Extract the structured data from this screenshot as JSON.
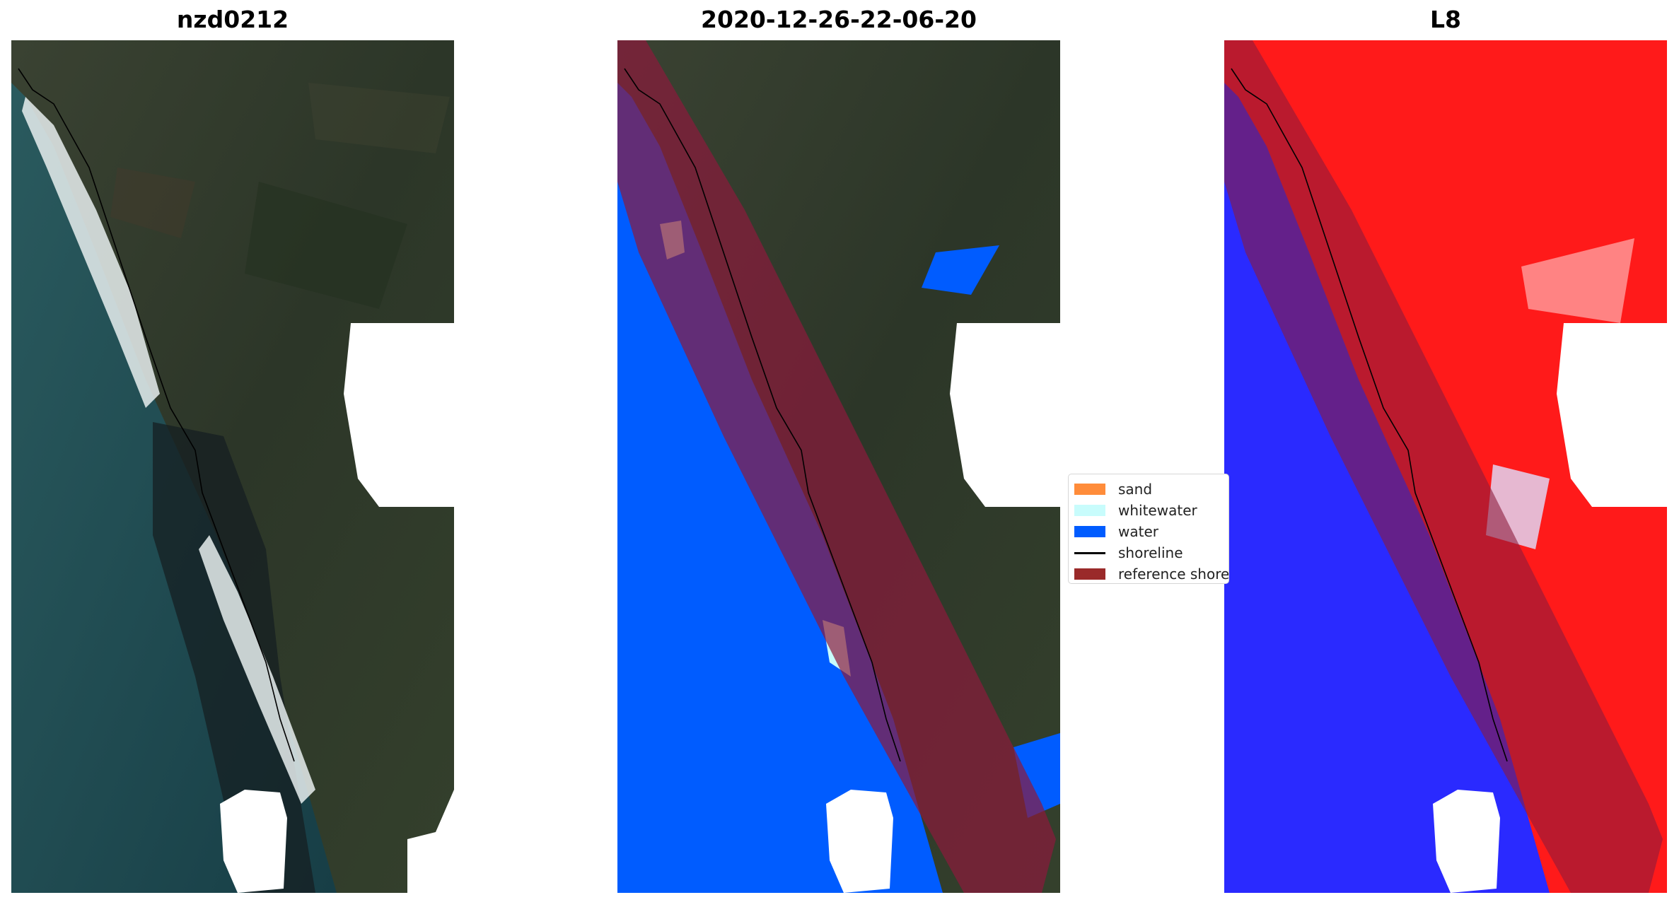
{
  "panels": [
    {
      "title": "nzd0212"
    },
    {
      "title": "2020-12-26-22-06-20"
    },
    {
      "title": "L8"
    }
  ],
  "legend": {
    "items": [
      {
        "label": "sand",
        "color": "#ff8c3a",
        "kind": "patch"
      },
      {
        "label": "whitewater",
        "color": "#c8fcfc",
        "kind": "patch"
      },
      {
        "label": "water",
        "color": "#005cff",
        "kind": "patch"
      },
      {
        "label": "shoreline",
        "color": "#000000",
        "kind": "line"
      },
      {
        "label": "reference shoreline buffer",
        "color": "#9a2a2a",
        "kind": "patch"
      }
    ]
  },
  "colors": {
    "land": "#2e3a2a",
    "ocean": "#1e4a52",
    "surf": "#e8eeee",
    "classified_water": "#005cff",
    "buffer": "#8c1a3c",
    "index_water": "#2a2aff",
    "index_land": "#ff1a1a",
    "mask": "#ffffff"
  }
}
